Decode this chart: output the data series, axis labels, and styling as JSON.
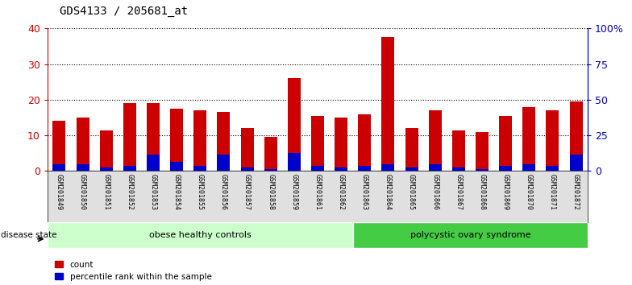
{
  "title": "GDS4133 / 205681_at",
  "samples": [
    "GSM201849",
    "GSM201850",
    "GSM201851",
    "GSM201852",
    "GSM201853",
    "GSM201854",
    "GSM201855",
    "GSM201856",
    "GSM201857",
    "GSM201858",
    "GSM201859",
    "GSM201861",
    "GSM201862",
    "GSM201863",
    "GSM201864",
    "GSM201865",
    "GSM201866",
    "GSM201867",
    "GSM201868",
    "GSM201869",
    "GSM201870",
    "GSM201871",
    "GSM201872"
  ],
  "count_values": [
    14,
    15,
    11.5,
    19,
    19,
    17.5,
    17,
    16.5,
    12,
    9.5,
    26,
    15.5,
    15,
    16,
    37.5,
    12,
    17,
    11.5,
    11,
    15.5,
    18,
    17,
    19.5
  ],
  "percentile_values": [
    2.0,
    2.0,
    1.0,
    1.5,
    4.5,
    2.5,
    1.5,
    4.5,
    1.0,
    0.5,
    5.0,
    1.5,
    1.0,
    1.5,
    2.0,
    1.0,
    2.0,
    1.0,
    0.5,
    1.5,
    2.0,
    1.5,
    4.5
  ],
  "group1_label": "obese healthy controls",
  "group2_label": "polycystic ovary syndrome",
  "group1_count": 13,
  "ylim_left": [
    0,
    40
  ],
  "ylim_right": [
    0,
    100
  ],
  "yticks_left": [
    0,
    10,
    20,
    30,
    40
  ],
  "yticks_right": [
    0,
    25,
    50,
    75,
    100
  ],
  "count_color": "#cc0000",
  "percentile_color": "#0000cc",
  "group1_bg": "#ccffcc",
  "group2_bg": "#44cc44",
  "axis_color_left": "#cc0000",
  "axis_color_right": "#0000cc",
  "bar_width": 0.55
}
